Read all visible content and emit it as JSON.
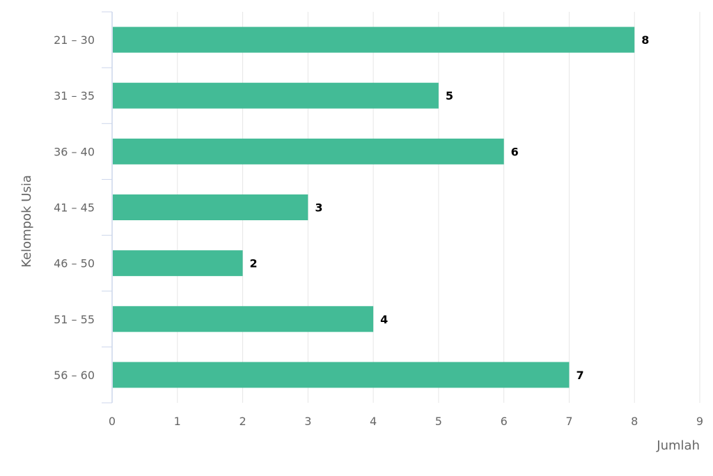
{
  "chart_data": {
    "type": "bar",
    "orientation": "horizontal",
    "title": "",
    "xlabel": "Jumlah",
    "ylabel": "Kelompok Usia",
    "categories": [
      "21 – 30",
      "31 – 35",
      "36 – 40",
      "41 – 45",
      "46 – 50",
      "51 – 55",
      "56 – 60"
    ],
    "values": [
      8,
      5,
      6,
      3,
      2,
      4,
      7
    ],
    "xlim": [
      0,
      9
    ],
    "xticks": [
      "0",
      "1",
      "2",
      "3",
      "4",
      "5",
      "6",
      "7",
      "8",
      "9"
    ],
    "grid": true,
    "data_labels": true,
    "bar_color": "#43bb96",
    "grid_color": "#e6e6e6",
    "axis_color": "#ccd6eb"
  }
}
